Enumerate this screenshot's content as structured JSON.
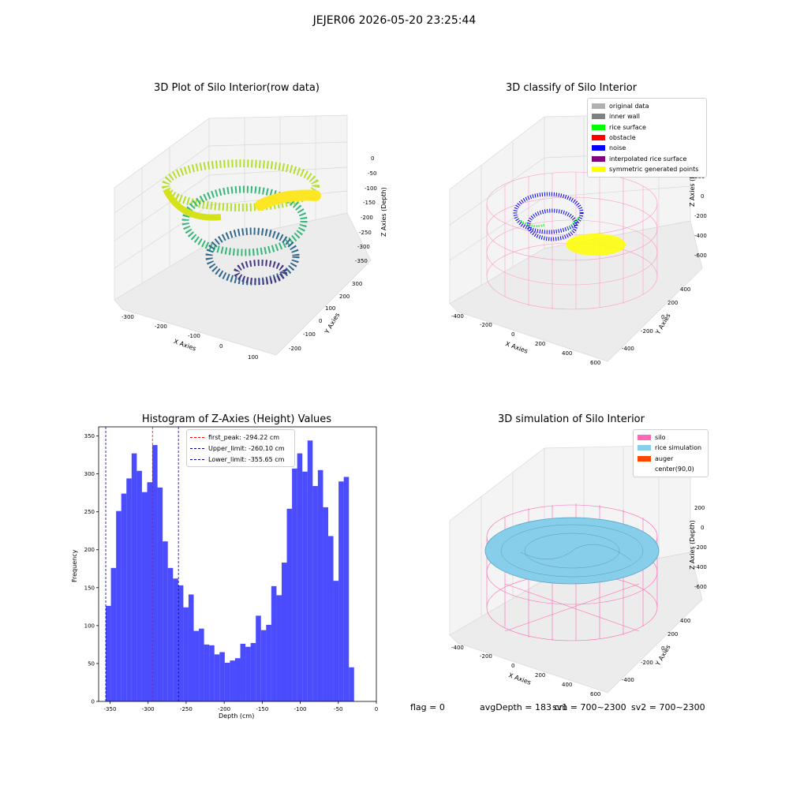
{
  "suptitle": "JEJER06 2026-05-20 23:25:44",
  "panels": {
    "raw": {
      "title": "3D Plot of Silo Interior(row data)",
      "xlabel": "X Axies",
      "ylabel": "Y Axies",
      "zlabel": "Z Axies (Depth)",
      "xticks": [
        "-300",
        "-200",
        "-100",
        "0",
        "100"
      ],
      "yticks": [
        "-200",
        "-100",
        "0",
        "100",
        "200",
        "300"
      ],
      "zticks": [
        "0",
        "-50",
        "-100",
        "-150",
        "-200",
        "-250",
        "-300",
        "-350"
      ]
    },
    "classify": {
      "title": "3D classify of Silo Interior",
      "xlabel": "X Axies",
      "ylabel": "Y Axies",
      "zlabel": "Z Axies (Depth)",
      "xticks": [
        "-400",
        "-200",
        "0",
        "200",
        "400",
        "600"
      ],
      "yticks": [
        "-400",
        "-200",
        "0",
        "200",
        "400"
      ],
      "zticks": [
        "200",
        "0",
        "-200",
        "-400",
        "-600"
      ],
      "legend": [
        {
          "label": "original data",
          "color": "#b0b0b0"
        },
        {
          "label": "inner wall",
          "color": "#808080"
        },
        {
          "label": "rice surface",
          "color": "#00ff00"
        },
        {
          "label": "obstacle",
          "color": "#ff0000"
        },
        {
          "label": "noise",
          "color": "#0000ff"
        },
        {
          "label": "interpolated rice surface",
          "color": "#800080"
        },
        {
          "label": "symmetric generated points",
          "color": "#ffff00"
        }
      ]
    },
    "simulation": {
      "title": "3D simulation of Silo Interior",
      "xlabel": "X Axies",
      "ylabel": "Y Axies",
      "zlabel": "Z Axies (Depth)",
      "xticks": [
        "-400",
        "-200",
        "0",
        "200",
        "400",
        "600"
      ],
      "yticks": [
        "-400",
        "-200",
        "0",
        "200",
        "400"
      ],
      "zticks": [
        "200",
        "0",
        "-200",
        "-400",
        "-600"
      ],
      "legend": [
        {
          "label": "silo",
          "color": "#ff69b4"
        },
        {
          "label": "rice simulation",
          "color": "#87ceeb"
        },
        {
          "label": "auger",
          "color": "#ff4500"
        },
        {
          "label": "center(90,0)",
          "color": ""
        }
      ]
    }
  },
  "chart_data": {
    "type": "bar",
    "title": "Histogram of Z-Axies (Height) Values",
    "xlabel": "Depth (cm)",
    "ylabel": "Frequency",
    "xlim": [
      -365,
      0
    ],
    "ylim": [
      0,
      362
    ],
    "xticks": [
      -350,
      -300,
      -250,
      -200,
      -150,
      -100,
      -50,
      0
    ],
    "yticks": [
      0,
      50,
      100,
      150,
      200,
      250,
      300,
      350
    ],
    "bin_start": -355.65,
    "bin_width": 6.8,
    "values": [
      126,
      176,
      251,
      274,
      294,
      327,
      304,
      276,
      289,
      338,
      282,
      211,
      176,
      162,
      153,
      124,
      141,
      93,
      96,
      75,
      74,
      62,
      65,
      51,
      54,
      57,
      76,
      72,
      77,
      113,
      94,
      101,
      152,
      140,
      183,
      254,
      307,
      327,
      303,
      344,
      284,
      305,
      256,
      218,
      159,
      290,
      296,
      45
    ],
    "bar_color": "#0000ff",
    "bar_opacity": 0.7,
    "lines": [
      {
        "label": "first_peak: -294.22 cm",
        "x": -294.22,
        "color": "#ff0000"
      },
      {
        "label": "Upper_limit: -260.10 cm",
        "x": -260.1,
        "color": "#00008b"
      },
      {
        "label": "Lower_limit: -355.65 cm",
        "x": -355.65,
        "color": "#00008b"
      }
    ],
    "legend_position": "upper center"
  },
  "footer": {
    "flag": "flag = 0",
    "avg": "avgDepth = 183 cm",
    "sv1": "sv1 = 700~2300",
    "sv2": "sv2 = 700~2300"
  }
}
